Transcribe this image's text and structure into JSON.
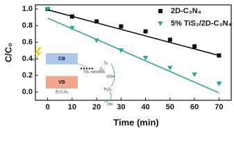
{
  "chart_data": {
    "type": "scatter",
    "x_label": "Time (min)",
    "y_label": "C/C₀",
    "xlim": [
      -5,
      75
    ],
    "xticks": [
      0,
      10,
      20,
      30,
      40,
      50,
      60,
      70
    ],
    "ylim": [
      -0.1,
      1.05
    ],
    "yticks": [
      {
        "value": 0,
        "label": "0.0"
      },
      {
        "value": 0.2,
        "label": "0.2"
      },
      {
        "value": 0.4,
        "label": "0.4"
      },
      {
        "value": 0.6,
        "label": "0.6"
      },
      {
        "value": 0.8,
        "label": "0.8"
      },
      {
        "value": 1.0,
        "label": "1.0"
      }
    ],
    "legend": "upper right",
    "series": [
      {
        "name": "2D-C₃N₄",
        "color": "#111111",
        "marker": "square",
        "x": [
          0,
          10,
          20,
          30,
          40,
          50,
          60,
          70
        ],
        "values": [
          1.0,
          0.91,
          0.85,
          0.79,
          0.73,
          0.63,
          0.55,
          0.44
        ],
        "fit": {
          "x": [
            0,
            70
          ],
          "values": [
            0.99,
            0.44
          ]
        }
      },
      {
        "name": "5% TiS₂/2D-C₃N₄",
        "color": "#2aa597",
        "marker": "triangle-down",
        "x": [
          0,
          10,
          20,
          30,
          40,
          50,
          60,
          70
        ],
        "values": [
          1.0,
          0.77,
          0.62,
          0.5,
          0.41,
          0.29,
          0.21,
          0.1
        ],
        "fit": {
          "x": [
            0,
            70
          ],
          "values": [
            0.89,
            -0.01
          ]
        }
      }
    ],
    "inset": {
      "cb": "CB",
      "vb": "VB",
      "semiconductor": "2D-C₃N₄",
      "cocatalyst": "TiS₂ nanodots",
      "light": "hν",
      "species": [
        "O₂",
        "·O₂⁻",
        "·OOH",
        "H₂O₂",
        "·OH"
      ]
    }
  }
}
